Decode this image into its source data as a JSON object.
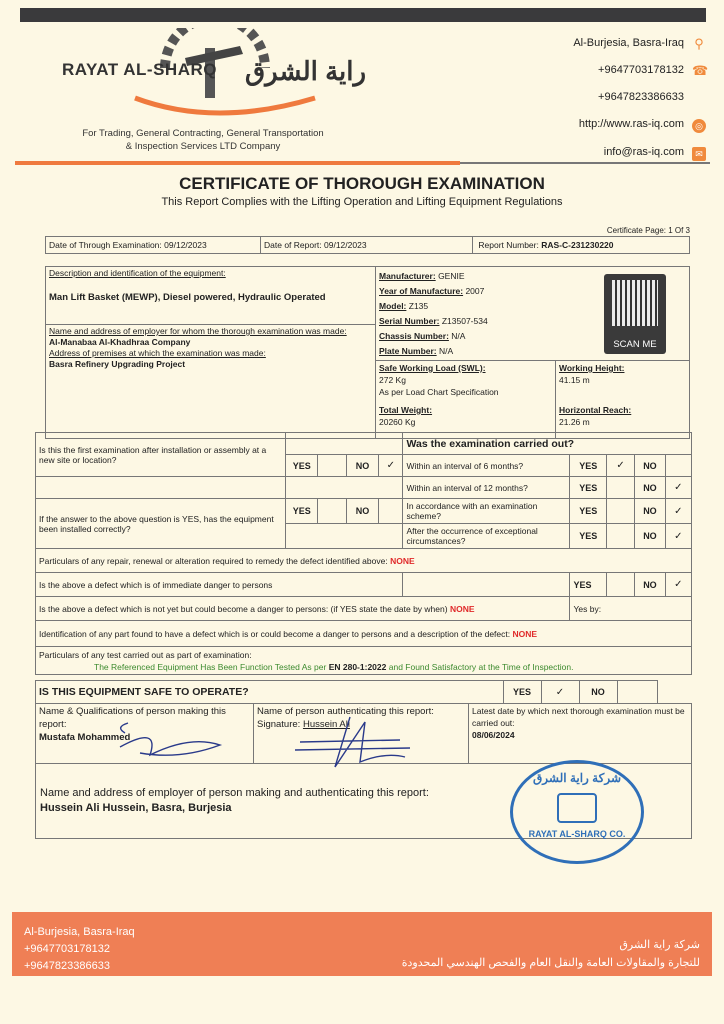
{
  "header": {
    "brand_en": "RAYAT AL-SHARQ",
    "brand_ar": "راية الشرق",
    "tagline_line1": "For Trading, General Contracting, General Transportation",
    "tagline_line2": "& Inspection Services LTD Company",
    "contacts": [
      {
        "text": "Al-Burjesia, Basra-Iraq",
        "icon": "location-pin-icon"
      },
      {
        "text": "+9647703178132",
        "icon": "phone-icon"
      },
      {
        "text": "+9647823386633",
        "icon": ""
      },
      {
        "text": "http://www.ras-iq.com",
        "icon": "globe-icon"
      },
      {
        "text": "info@ras-iq.com",
        "icon": "email-icon"
      }
    ]
  },
  "title": "CERTIFICATE OF THOROUGH EXAMINATION",
  "subtitle": "This Report Complies with the Lifting Operation and Lifting Equipment Regulations",
  "certificate_page": "Certificate Page: 1 Of 3",
  "dates": {
    "exam_label": "Date of Through Examination:",
    "exam_value": "09/12/2023",
    "report_label": "Date of Report:",
    "report_value": "09/12/2023",
    "number_label": "Report Number:",
    "number_value": "RAS-C-231230220"
  },
  "equipment": {
    "desc_label": "Description and identification of the equipment:",
    "desc_value": "Man Lift Basket (MEWP), Diesel powered, Hydraulic Operated",
    "employer_label": "Name and address of employer for whom the thorough examination was made:",
    "employer_value": "Al-Manabaa Al-Khadhraa Company",
    "premises_label": "Address of premises at which the examination was made:",
    "premises_value": "Basra Refinery Upgrading Project",
    "manufacturer_label": "Manufacturer:",
    "manufacturer_value": "GENIE",
    "year_label": "Year of Manufacture:",
    "year_value": "2007",
    "model_label": "Model:",
    "model_value": "Z135",
    "serial_label": "Serial Number:",
    "serial_value": "Z13507-534",
    "chassis_label": "Chassis Number:",
    "chassis_value": "N/A",
    "plate_label": "Plate Number:",
    "plate_value": "N/A",
    "swl_label": "Safe Working Load (SWL):",
    "swl_value": "272 Kg",
    "swl_note": "As per Load Chart Specification",
    "weight_label": "Total Weight:",
    "weight_value": "20260 Kg",
    "height_label": "Working Height:",
    "height_value": "41.15 m",
    "reach_label": "Horizontal Reach:",
    "reach_value": "21.26 m",
    "qr_label": "SCAN ME"
  },
  "labels": {
    "yes": "YES",
    "no": "NO",
    "check": "✓"
  },
  "questions": {
    "q1": "Is this the first examination after installation or assembly at a new site or location?",
    "q1_answer": "NO",
    "q2": "If the answer to the above question is YES, has the equipment been installed correctly?",
    "carried_out_title": "Was the examination carried out?",
    "carried_out": [
      {
        "text": "Within an interval of 6 months?",
        "answer": "YES"
      },
      {
        "text": "Within an interval of 12 months?",
        "answer": "NO"
      },
      {
        "text": "In accordance with an examination scheme?",
        "answer": "NO"
      },
      {
        "text": "After the occurrence of exceptional circumstances?",
        "answer": "NO"
      }
    ],
    "repair": "Particulars of any repair, renewal or alteration required to remedy the defect identified above:",
    "repair_value": "NONE",
    "immediate": "Is the above a defect which is of immediate danger to persons",
    "immediate_answer": "NO",
    "future": "Is the above a defect which is not yet but could become a danger to persons: (if YES state the date by when)",
    "future_value": "NONE",
    "yes_by": "Yes by:",
    "identification": "Identification of any part found to have a defect which is or could become a danger to persons and a description of the defect:",
    "identification_value": "NONE",
    "test_label": "Particulars of any test carried out as part of examination:",
    "test_pre": "The Referenced Equipment Has Been Function Tested As per",
    "test_std": "EN 280-1:2022",
    "test_post": "and Found Satisfactory at the Time of Inspection.",
    "safe": "IS THIS EQUIPMENT SAFE TO OPERATE?",
    "safe_answer": "YES"
  },
  "signatures": {
    "maker_label": "Name & Qualifications of person making this report:",
    "maker_value": "Mustafa Mohammed",
    "auth_label": "Name of person authenticating this report:",
    "auth_sig_label": "Signature:",
    "auth_value": "Hussein Ali",
    "next_label": "Latest date by which next thorough examination must be carried out:",
    "next_value": "08/06/2024"
  },
  "employer_auth": {
    "label": "Name and address of employer of person making and authenticating this report:",
    "value": "Hussein Ali Hussein, Basra, Burjesia"
  },
  "stamp": {
    "text_ar": "شركة راية الشرق",
    "text_en": "RAYAT AL-SHARQ CO."
  },
  "footer": {
    "address": "Al-Burjesia, Basra-Iraq",
    "phone1": "+9647703178132",
    "phone2": "+9647823386633",
    "company_ar": "شركة راية الشرق",
    "tagline_ar": "للتجارة والمقاولات العامة والنقل العام والفحص الهندسي المحدودة"
  },
  "colors": {
    "accent": "#ef7a3e",
    "red": "#e02a2a",
    "green": "#3c8a2e",
    "stamp": "#2f6fb8"
  }
}
